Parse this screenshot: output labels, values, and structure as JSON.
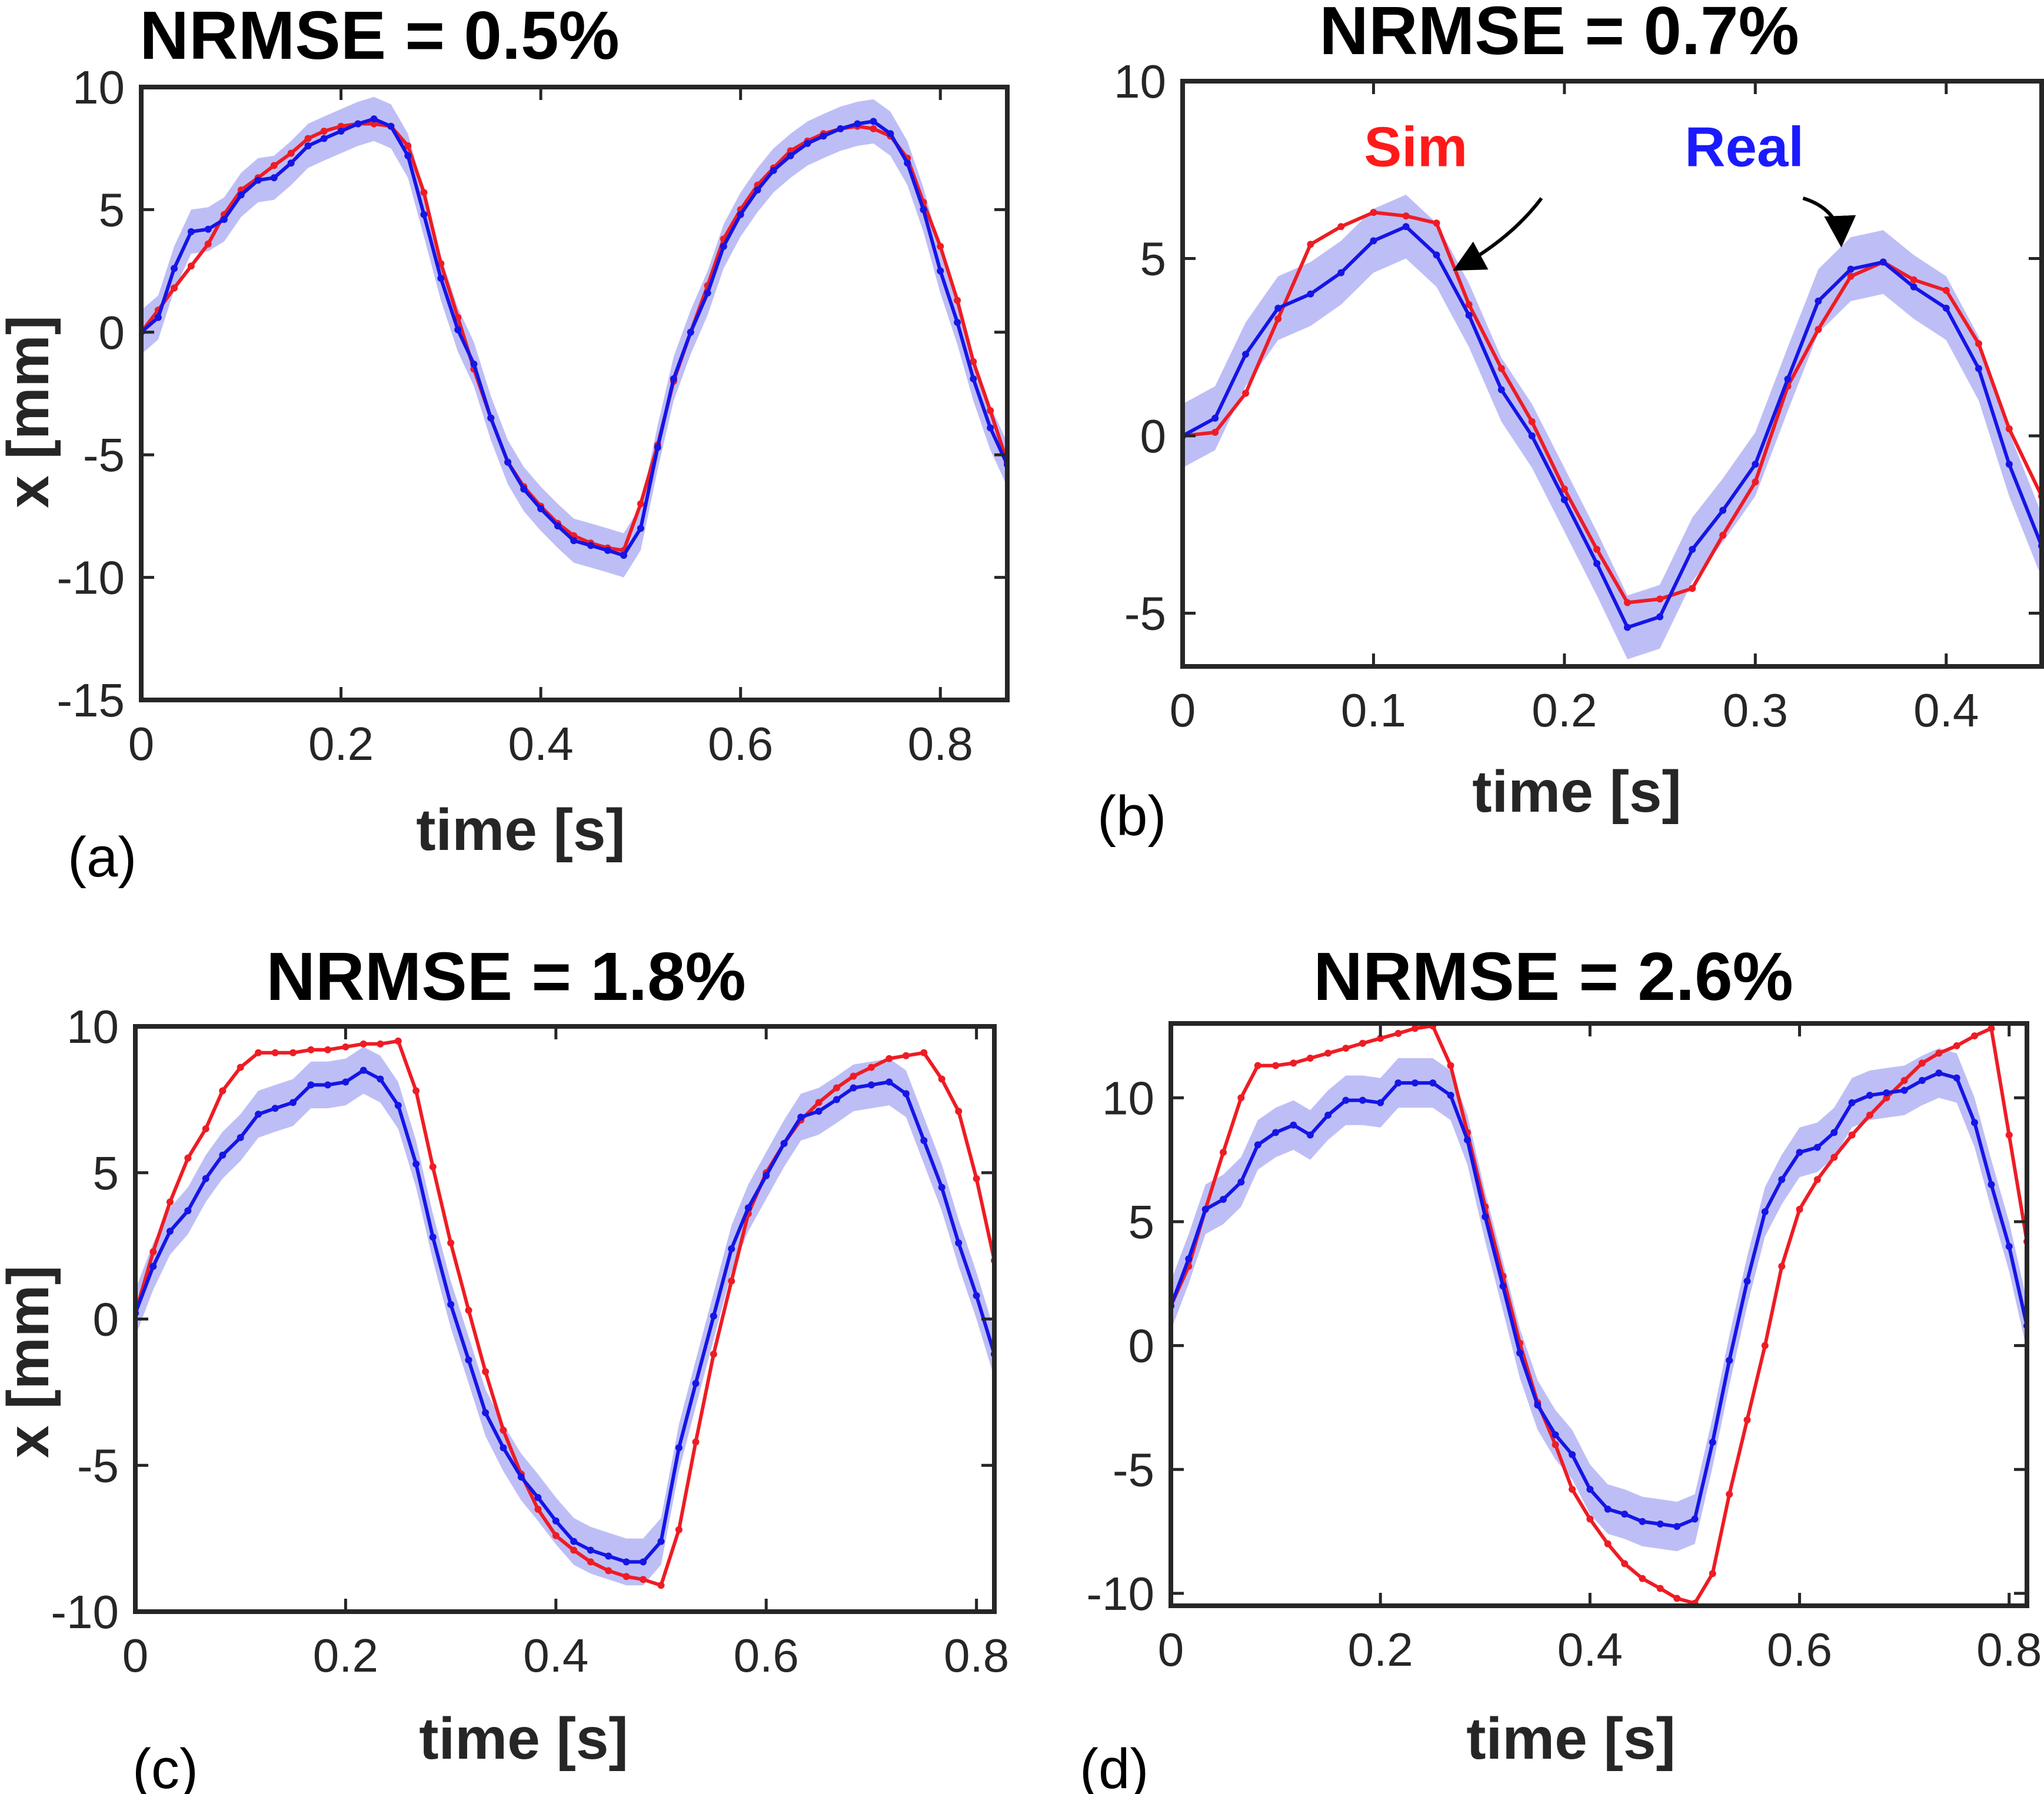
{
  "colors": {
    "sim": "#ee1c24",
    "real": "#1515e6",
    "band": "#b3b3f5",
    "axis": "#262626"
  },
  "chart_data": [
    {
      "type": "line",
      "title": "NRMSE = 0.5%",
      "xlabel": "time [s]",
      "ylabel": "x [mm]",
      "panel_label": "(a)",
      "xlim": [
        0,
        0.867
      ],
      "ylim": [
        -15,
        10
      ],
      "xticks": [
        "0",
        "0.2",
        "0.4",
        "0.6",
        "0.8"
      ],
      "xtick_values": [
        0,
        0.2,
        0.4,
        0.6,
        0.8
      ],
      "yticks": [
        "-15",
        "-10",
        "-5",
        "0",
        "5",
        "10"
      ],
      "ytick_values": [
        -15,
        -10,
        -5,
        0,
        5,
        10
      ],
      "band_width": 0.9,
      "series": [
        {
          "role": "sim",
          "x": [
            0,
            0.017,
            0.033,
            0.05,
            0.067,
            0.083,
            0.1,
            0.117,
            0.133,
            0.15,
            0.167,
            0.183,
            0.2,
            0.217,
            0.233,
            0.25,
            0.267,
            0.283,
            0.3,
            0.317,
            0.333,
            0.35,
            0.367,
            0.383,
            0.4,
            0.417,
            0.433,
            0.45,
            0.467,
            0.483,
            0.5,
            0.517,
            0.533,
            0.55,
            0.567,
            0.583,
            0.6,
            0.617,
            0.633,
            0.65,
            0.667,
            0.683,
            0.7,
            0.717,
            0.733,
            0.75,
            0.767,
            0.783,
            0.8,
            0.817,
            0.833,
            0.85,
            0.867
          ],
          "values": [
            0,
            0.9,
            1.8,
            2.7,
            3.6,
            4.8,
            5.8,
            6.3,
            6.8,
            7.3,
            7.9,
            8.2,
            8.4,
            8.5,
            8.5,
            8.4,
            7.6,
            5.7,
            2.8,
            0.6,
            -1.5,
            -3.5,
            -5.3,
            -6.3,
            -7.1,
            -7.8,
            -8.3,
            -8.6,
            -8.8,
            -8.9,
            -7.0,
            -4.6,
            -2.0,
            0,
            1.9,
            3.8,
            5.0,
            6.0,
            6.7,
            7.4,
            7.8,
            8.1,
            8.3,
            8.4,
            8.3,
            8.0,
            7.1,
            5.3,
            3.5,
            1.3,
            -1.2,
            -3.2,
            -5.3
          ]
        },
        {
          "role": "real",
          "x": [
            0,
            0.017,
            0.033,
            0.05,
            0.067,
            0.083,
            0.1,
            0.117,
            0.133,
            0.15,
            0.167,
            0.183,
            0.2,
            0.217,
            0.233,
            0.25,
            0.267,
            0.283,
            0.3,
            0.317,
            0.333,
            0.35,
            0.367,
            0.383,
            0.4,
            0.417,
            0.433,
            0.45,
            0.467,
            0.483,
            0.5,
            0.517,
            0.533,
            0.55,
            0.567,
            0.583,
            0.6,
            0.617,
            0.633,
            0.65,
            0.667,
            0.683,
            0.7,
            0.717,
            0.733,
            0.75,
            0.767,
            0.783,
            0.8,
            0.817,
            0.833,
            0.85,
            0.867
          ],
          "values": [
            0,
            0.6,
            2.6,
            4.1,
            4.2,
            4.6,
            5.6,
            6.2,
            6.3,
            6.9,
            7.6,
            7.9,
            8.2,
            8.5,
            8.7,
            8.4,
            7.2,
            4.8,
            2.2,
            0.1,
            -1.3,
            -3.5,
            -5.3,
            -6.4,
            -7.2,
            -7.9,
            -8.5,
            -8.7,
            -8.9,
            -9.1,
            -8.0,
            -4.7,
            -1.9,
            0,
            1.6,
            3.5,
            4.8,
            5.8,
            6.6,
            7.2,
            7.7,
            8.0,
            8.3,
            8.5,
            8.6,
            8.1,
            6.9,
            5.0,
            2.5,
            0.4,
            -1.9,
            -3.9,
            -5.4
          ]
        }
      ]
    },
    {
      "type": "line",
      "title": "NRMSE = 0.7%",
      "xlabel": "time [s]",
      "ylabel": "",
      "panel_label": "(b)",
      "xlim": [
        0,
        0.45
      ],
      "ylim": [
        -6.5,
        10
      ],
      "xticks": [
        "0",
        "0.1",
        "0.2",
        "0.3",
        "0.4"
      ],
      "xtick_values": [
        0,
        0.1,
        0.2,
        0.3,
        0.4
      ],
      "yticks": [
        "-5",
        "0",
        "5",
        "10"
      ],
      "ytick_values": [
        -5,
        0,
        5,
        10
      ],
      "band_width": 0.9,
      "annotations": [
        {
          "text": "Sim",
          "role": "sim",
          "x": 0.095,
          "y": 7.6,
          "arrow_from": [
            0.188,
            6.7
          ],
          "arrow_to": [
            0.143,
            4.7
          ]
        },
        {
          "text": "Real",
          "role": "real",
          "x": 0.263,
          "y": 7.6,
          "arrow_from": [
            0.325,
            6.7
          ],
          "arrow_to": [
            0.345,
            5.4
          ]
        }
      ],
      "series": [
        {
          "role": "sim",
          "x": [
            0,
            0.017,
            0.033,
            0.05,
            0.067,
            0.083,
            0.1,
            0.117,
            0.133,
            0.15,
            0.167,
            0.183,
            0.2,
            0.217,
            0.233,
            0.25,
            0.267,
            0.283,
            0.3,
            0.317,
            0.333,
            0.35,
            0.367,
            0.383,
            0.4,
            0.417,
            0.433,
            0.45
          ],
          "values": [
            0,
            0.1,
            1.2,
            3.3,
            5.4,
            5.9,
            6.3,
            6.2,
            6.0,
            3.7,
            1.9,
            0.4,
            -1.5,
            -3.2,
            -4.7,
            -4.6,
            -4.3,
            -2.8,
            -1.3,
            1.4,
            3.0,
            4.5,
            4.9,
            4.4,
            4.1,
            2.6,
            0.2,
            -1.7
          ]
        },
        {
          "role": "real",
          "x": [
            0,
            0.017,
            0.033,
            0.05,
            0.067,
            0.083,
            0.1,
            0.117,
            0.133,
            0.15,
            0.167,
            0.183,
            0.2,
            0.217,
            0.233,
            0.25,
            0.267,
            0.283,
            0.3,
            0.317,
            0.333,
            0.35,
            0.367,
            0.383,
            0.4,
            0.417,
            0.433,
            0.45
          ],
          "values": [
            0,
            0.5,
            2.3,
            3.6,
            4.0,
            4.6,
            5.5,
            5.9,
            5.1,
            3.4,
            1.3,
            0,
            -1.8,
            -3.6,
            -5.4,
            -5.1,
            -3.2,
            -2.1,
            -0.8,
            1.6,
            3.8,
            4.7,
            4.9,
            4.2,
            3.6,
            1.9,
            -0.8,
            -3.1
          ]
        }
      ]
    },
    {
      "type": "line",
      "title": "NRMSE = 1.8%",
      "xlabel": "time [s]",
      "ylabel": "x [mm]",
      "panel_label": "(c)",
      "xlim": [
        0,
        0.817
      ],
      "ylim": [
        -10,
        10
      ],
      "xticks": [
        "0",
        "0.2",
        "0.4",
        "0.6",
        "0.8"
      ],
      "xtick_values": [
        0,
        0.2,
        0.4,
        0.6,
        0.8
      ],
      "yticks": [
        "-10",
        "-5",
        "0",
        "5",
        "10"
      ],
      "ytick_values": [
        -10,
        -5,
        0,
        5,
        10
      ],
      "band_width": 0.8,
      "series": [
        {
          "role": "sim",
          "x": [
            0,
            0.017,
            0.033,
            0.05,
            0.067,
            0.083,
            0.1,
            0.117,
            0.133,
            0.15,
            0.167,
            0.183,
            0.2,
            0.217,
            0.233,
            0.25,
            0.267,
            0.283,
            0.3,
            0.317,
            0.333,
            0.35,
            0.367,
            0.383,
            0.4,
            0.417,
            0.433,
            0.45,
            0.467,
            0.483,
            0.5,
            0.517,
            0.533,
            0.55,
            0.567,
            0.583,
            0.6,
            0.617,
            0.633,
            0.65,
            0.667,
            0.683,
            0.7,
            0.717,
            0.733,
            0.75,
            0.767,
            0.783,
            0.8,
            0.817
          ],
          "values": [
            0.2,
            2.3,
            4.0,
            5.5,
            6.5,
            7.8,
            8.6,
            9.1,
            9.1,
            9.1,
            9.2,
            9.2,
            9.3,
            9.4,
            9.4,
            9.5,
            7.8,
            5.2,
            2.6,
            0.3,
            -1.8,
            -3.8,
            -5.3,
            -6.5,
            -7.4,
            -7.9,
            -8.3,
            -8.6,
            -8.8,
            -8.9,
            -9.1,
            -7.2,
            -4.2,
            -1.2,
            1.3,
            3.6,
            5.0,
            6.0,
            6.8,
            7.4,
            7.9,
            8.3,
            8.6,
            8.9,
            9.0,
            9.1,
            8.2,
            7.1,
            4.8,
            2.0
          ]
        },
        {
          "role": "real",
          "x": [
            0,
            0.017,
            0.033,
            0.05,
            0.067,
            0.083,
            0.1,
            0.117,
            0.133,
            0.15,
            0.167,
            0.183,
            0.2,
            0.217,
            0.233,
            0.25,
            0.267,
            0.283,
            0.3,
            0.317,
            0.333,
            0.35,
            0.367,
            0.383,
            0.4,
            0.417,
            0.433,
            0.45,
            0.467,
            0.483,
            0.5,
            0.517,
            0.533,
            0.55,
            0.567,
            0.583,
            0.6,
            0.617,
            0.633,
            0.65,
            0.667,
            0.683,
            0.7,
            0.717,
            0.733,
            0.75,
            0.767,
            0.783,
            0.8,
            0.817
          ],
          "values": [
            0.2,
            1.8,
            3.0,
            3.7,
            4.8,
            5.6,
            6.2,
            7.0,
            7.2,
            7.4,
            8.0,
            8.0,
            8.1,
            8.5,
            8.2,
            7.3,
            5.3,
            2.8,
            0.5,
            -1.4,
            -3.2,
            -4.4,
            -5.4,
            -6.1,
            -6.9,
            -7.6,
            -7.9,
            -8.1,
            -8.3,
            -8.3,
            -7.6,
            -4.4,
            -2.2,
            0.1,
            2.4,
            3.8,
            4.9,
            6.0,
            6.9,
            7.1,
            7.5,
            7.9,
            8.0,
            8.1,
            7.7,
            6.1,
            4.5,
            2.6,
            0.8,
            -1.2
          ]
        }
      ]
    },
    {
      "type": "line",
      "title": "NRMSE = 2.6%",
      "xlabel": "time [s]",
      "ylabel": "",
      "panel_label": "(d)",
      "xlim": [
        0,
        0.817
      ],
      "ylim": [
        -10.5,
        13
      ],
      "xticks": [
        "0",
        "0.2",
        "0.4",
        "0.6",
        "0.8"
      ],
      "xtick_values": [
        0,
        0.2,
        0.4,
        0.6,
        0.8
      ],
      "yticks": [
        "-10",
        "-5",
        "0",
        "5",
        "10"
      ],
      "ytick_values": [
        -10,
        -5,
        0,
        5,
        10
      ],
      "band_width": 1.0,
      "series": [
        {
          "role": "sim",
          "x": [
            0,
            0.017,
            0.033,
            0.05,
            0.067,
            0.083,
            0.1,
            0.117,
            0.133,
            0.15,
            0.167,
            0.183,
            0.2,
            0.217,
            0.233,
            0.25,
            0.267,
            0.283,
            0.3,
            0.317,
            0.333,
            0.35,
            0.367,
            0.383,
            0.4,
            0.417,
            0.433,
            0.45,
            0.467,
            0.483,
            0.5,
            0.517,
            0.533,
            0.55,
            0.567,
            0.583,
            0.6,
            0.617,
            0.633,
            0.65,
            0.667,
            0.683,
            0.7,
            0.717,
            0.733,
            0.75,
            0.767,
            0.783,
            0.8,
            0.817
          ],
          "values": [
            1.6,
            3.2,
            5.5,
            7.8,
            10.0,
            11.3,
            11.3,
            11.4,
            11.6,
            11.8,
            12.0,
            12.2,
            12.4,
            12.6,
            12.8,
            12.9,
            11.3,
            8.6,
            5.6,
            2.8,
            0.1,
            -2.3,
            -4.0,
            -5.8,
            -7.0,
            -8.0,
            -8.8,
            -9.4,
            -9.8,
            -10.2,
            -10.4,
            -9.2,
            -6.0,
            -3.0,
            0,
            3.2,
            5.5,
            6.7,
            7.6,
            8.5,
            9.3,
            10.0,
            10.7,
            11.4,
            11.8,
            12.1,
            12.5,
            12.8,
            8.5,
            4.2
          ]
        },
        {
          "role": "real",
          "x": [
            0,
            0.017,
            0.033,
            0.05,
            0.067,
            0.083,
            0.1,
            0.117,
            0.133,
            0.15,
            0.167,
            0.183,
            0.2,
            0.217,
            0.233,
            0.25,
            0.267,
            0.283,
            0.3,
            0.317,
            0.333,
            0.35,
            0.367,
            0.383,
            0.4,
            0.417,
            0.433,
            0.45,
            0.467,
            0.483,
            0.5,
            0.517,
            0.533,
            0.55,
            0.567,
            0.583,
            0.6,
            0.617,
            0.633,
            0.65,
            0.667,
            0.683,
            0.7,
            0.717,
            0.733,
            0.75,
            0.767,
            0.783,
            0.8,
            0.817
          ],
          "values": [
            1.6,
            3.5,
            5.5,
            5.9,
            6.6,
            8.1,
            8.6,
            8.9,
            8.5,
            9.3,
            9.9,
            9.9,
            9.8,
            10.6,
            10.6,
            10.6,
            10.1,
            8.3,
            5.2,
            2.4,
            -0.3,
            -2.4,
            -3.6,
            -4.4,
            -5.8,
            -6.6,
            -6.8,
            -7.1,
            -7.2,
            -7.3,
            -7.0,
            -3.9,
            -0.6,
            2.6,
            5.4,
            6.7,
            7.8,
            8.0,
            8.6,
            9.8,
            10.1,
            10.2,
            10.3,
            10.7,
            11.0,
            10.8,
            9.0,
            6.5,
            4.0,
            0.8
          ]
        }
      ]
    }
  ]
}
